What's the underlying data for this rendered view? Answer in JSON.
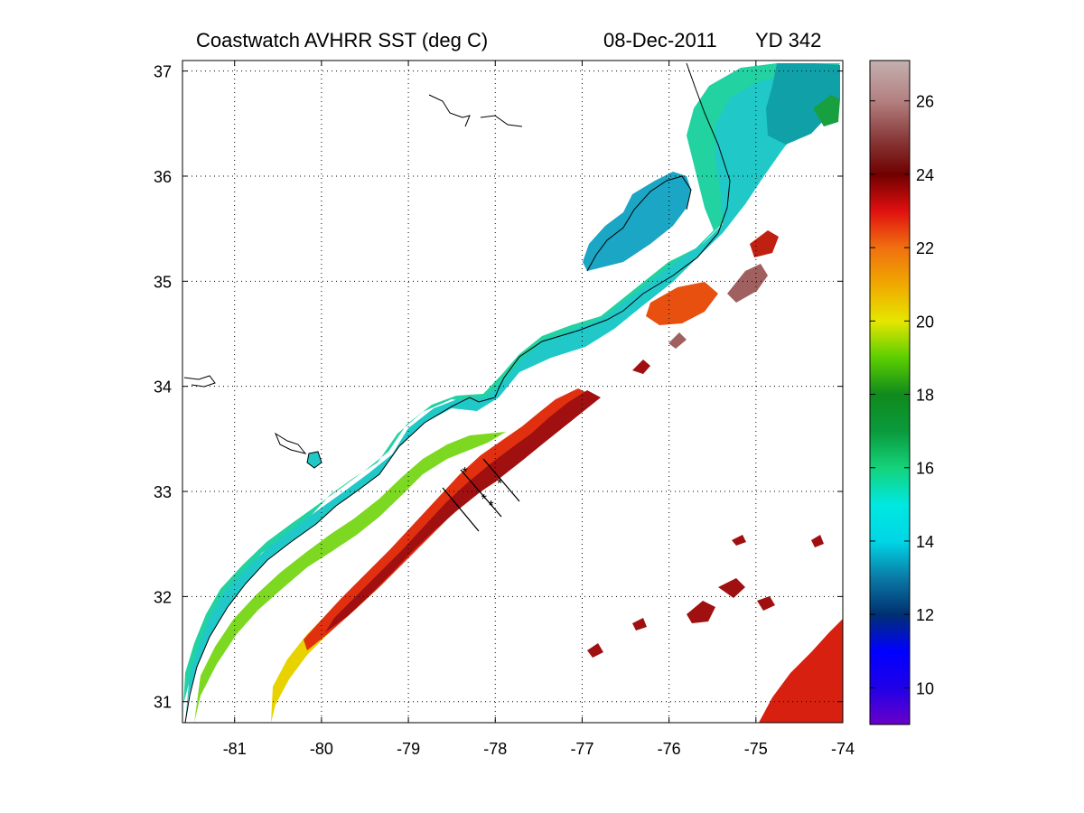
{
  "title": {
    "main": "Coastwatch   AVHRR   SST  (deg C)",
    "date": "08-Dec-2011",
    "yearday": "YD 342"
  },
  "map": {
    "x_ticks": [
      -81,
      -80,
      -79,
      -78,
      -77,
      -76,
      -75,
      -74
    ],
    "y_ticks": [
      31,
      32,
      33,
      34,
      35,
      36,
      37
    ],
    "x_range": [
      -81.6,
      -74
    ],
    "y_range": [
      30.8,
      37.1
    ],
    "grid": "dotted",
    "colorbar_ticks": [
      10,
      12,
      14,
      16,
      18,
      20,
      22,
      24,
      26
    ],
    "colorbar_range": [
      9,
      27.1
    ],
    "colorbar_stops": [
      {
        "v": 9.0,
        "c": "#6a00c8"
      },
      {
        "v": 10.0,
        "c": "#2000e8"
      },
      {
        "v": 11.0,
        "c": "#0000ff"
      },
      {
        "v": 12.0,
        "c": "#003070"
      },
      {
        "v": 13.0,
        "c": "#0a7aa6"
      },
      {
        "v": 14.0,
        "c": "#00d6e6"
      },
      {
        "v": 15.0,
        "c": "#00e8e0"
      },
      {
        "v": 16.0,
        "c": "#14d27a"
      },
      {
        "v": 17.0,
        "c": "#0a9a3c"
      },
      {
        "v": 18.0,
        "c": "#108a1c"
      },
      {
        "v": 19.0,
        "c": "#5ccf00"
      },
      {
        "v": 20.0,
        "c": "#e6e600"
      },
      {
        "v": 21.0,
        "c": "#f0a800"
      },
      {
        "v": 22.0,
        "c": "#f07010"
      },
      {
        "v": 23.0,
        "c": "#e01010"
      },
      {
        "v": 24.0,
        "c": "#700000"
      },
      {
        "v": 25.0,
        "c": "#8a3c3c"
      },
      {
        "v": 26.0,
        "c": "#b48080"
      },
      {
        "v": 27.1,
        "c": "#c4b0b0"
      }
    ],
    "transect_stations": [
      {
        "lon": -78.35,
        "lat": 33.19
      },
      {
        "lon": -78.13,
        "lat": 32.93
      },
      {
        "lon": -78.05,
        "lat": 32.87
      },
      {
        "lon": -77.95,
        "lat": 33.08
      }
    ]
  }
}
